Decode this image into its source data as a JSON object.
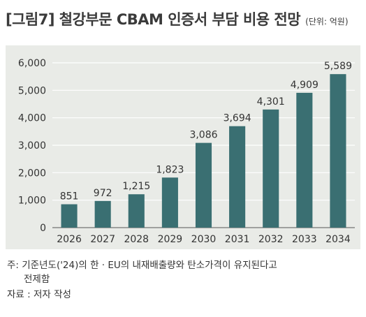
{
  "header": {
    "title": "[그림7] 철강부문 CBAM 인증서 부담 비용 전망",
    "unit": "(단위: 억원)"
  },
  "chart_data": {
    "type": "bar",
    "categories": [
      "2026",
      "2027",
      "2028",
      "2029",
      "2030",
      "2031",
      "2032",
      "2033",
      "2034"
    ],
    "values": [
      851,
      972,
      1215,
      1823,
      3086,
      3694,
      4301,
      4909,
      5589
    ],
    "value_labels": [
      "851",
      "972",
      "1,215",
      "1,823",
      "3,086",
      "3,694",
      "4,301",
      "4,909",
      "5,589"
    ],
    "yticks": [
      0,
      1000,
      2000,
      3000,
      4000,
      5000,
      6000
    ],
    "ytick_labels": [
      "0",
      "1,000",
      "2,000",
      "3,000",
      "4,000",
      "5,000",
      "6,000"
    ],
    "ylim": [
      0,
      6000
    ],
    "grid": true,
    "bar_color": "#3a6f72",
    "background_color": "#e9ebe7"
  },
  "footnotes": {
    "note_line1": "주: 기준년도('24)의 한 · EU의 내재배출량와 탄소가격이 유지된다고",
    "note_line2": "전제함",
    "source": "자료 : 저자 작성"
  }
}
